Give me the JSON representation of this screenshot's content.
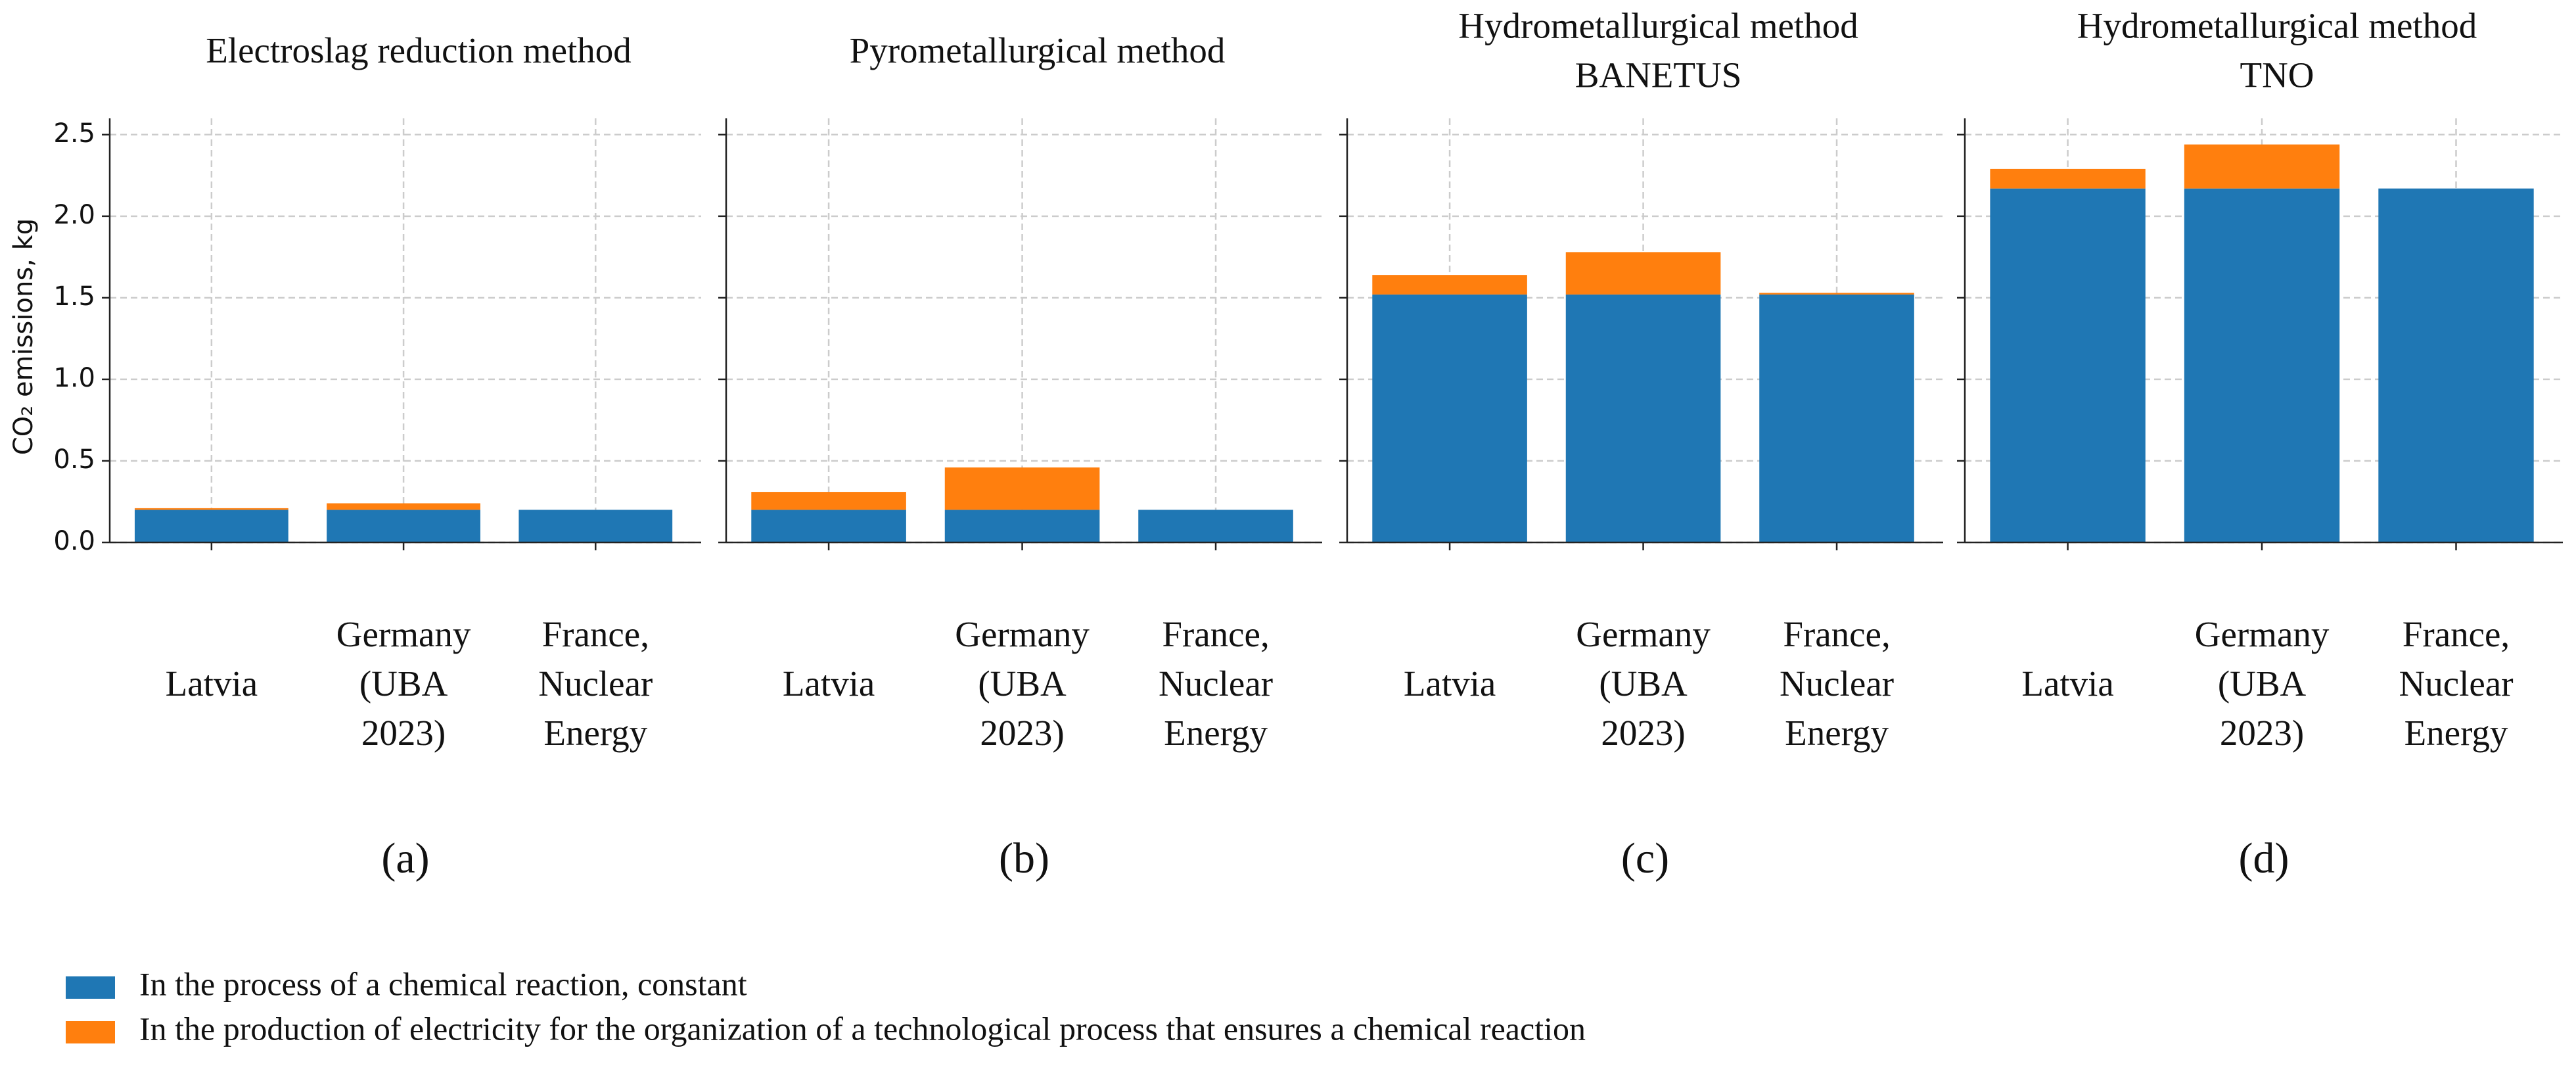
{
  "chart_data": [
    {
      "type": "bar",
      "stacked": true,
      "title": "Electroslag reduction method",
      "panel_label": "(a)",
      "y_label": "CO₂ emissions, kg",
      "categories": [
        "Latvia",
        "Germany (UBA 2023)",
        "France, Nuclear Energy"
      ],
      "series": [
        {
          "name": "In the process of a chemical reaction, constant",
          "color": "#1f77b4",
          "values": [
            0.2,
            0.2,
            0.2
          ]
        },
        {
          "name": "In the production of electricity for the organization of a technological process that ensures a chemical reaction",
          "color": "#ff7f0e",
          "values": [
            0.01,
            0.04,
            0
          ]
        }
      ],
      "ylim": [
        0,
        2.6
      ],
      "yticks": [
        {
          "value": 0,
          "label": "0.0"
        },
        0.5,
        {
          "value": 1,
          "label": "1.0"
        },
        1.5,
        {
          "value": 2,
          "label": "2.0"
        },
        2.5
      ],
      "grid": true
    },
    {
      "type": "bar",
      "stacked": true,
      "title": "Pyrometallurgical method",
      "panel_label": "(b)",
      "categories": [
        "Latvia",
        "Germany (UBA 2023)",
        "France, Nuclear Energy"
      ],
      "series": [
        {
          "name": "In the process of a chemical reaction, constant",
          "color": "#1f77b4",
          "values": [
            0.2,
            0.2,
            0.2
          ]
        },
        {
          "name": "In the production of electricity for the organization of a technological process that ensures a chemical reaction",
          "color": "#ff7f0e",
          "values": [
            0.11,
            0.26,
            0
          ]
        }
      ],
      "ylim": [
        0,
        2.6
      ],
      "yticks": [
        0,
        0.5,
        1,
        1.5,
        2,
        2.5
      ],
      "grid": true
    },
    {
      "type": "bar",
      "stacked": true,
      "title": "Hydrometallurgical method\nBANETUS",
      "panel_label": "(c)",
      "categories": [
        "Latvia",
        "Germany (UBA 2023)",
        "France, Nuclear Energy"
      ],
      "series": [
        {
          "name": "In the process of a chemical reaction, constant",
          "color": "#1f77b4",
          "values": [
            1.52,
            1.52,
            1.52
          ]
        },
        {
          "name": "In the production of electricity for the organization of a technological process that ensures a chemical reaction",
          "color": "#ff7f0e",
          "values": [
            0.12,
            0.26,
            0.01
          ]
        }
      ],
      "ylim": [
        0,
        2.6
      ],
      "yticks": [
        0,
        0.5,
        1,
        1.5,
        2,
        2.5
      ],
      "grid": true
    },
    {
      "type": "bar",
      "stacked": true,
      "title": "Hydrometallurgical method\nTNO",
      "panel_label": "(d)",
      "categories": [
        "Latvia",
        "Germany (UBA 2023)",
        "France, Nuclear Energy"
      ],
      "series": [
        {
          "name": "In the process of a chemical reaction, constant",
          "color": "#1f77b4",
          "values": [
            2.17,
            2.17,
            2.17
          ]
        },
        {
          "name": "In the production of electricity for the organization of a technological process that ensures a chemical reaction",
          "color": "#ff7f0e",
          "values": [
            0.12,
            0.27,
            0
          ]
        }
      ],
      "ylim": [
        0,
        2.6
      ],
      "yticks": [
        0,
        0.5,
        1,
        1.5,
        2,
        2.5
      ],
      "grid": true
    }
  ]
}
